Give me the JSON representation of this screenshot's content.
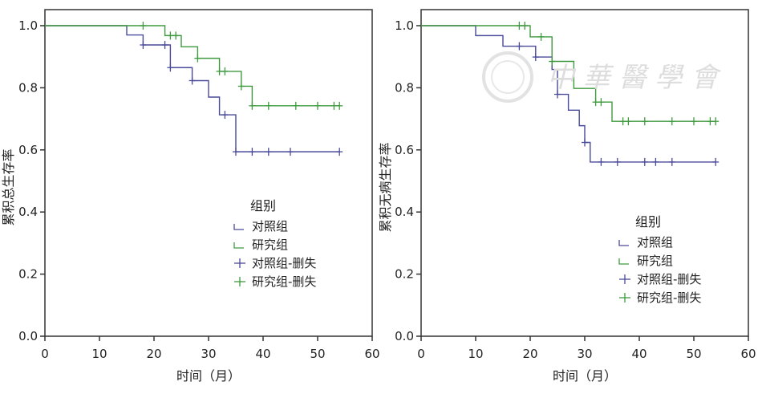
{
  "colors": {
    "control": "#4a4a9a",
    "study": "#3f9a3f",
    "axis": "#333333"
  },
  "watermark": "中华医学会",
  "chart_data": [
    {
      "type": "line",
      "subtype": "kaplan-meier",
      "title": "",
      "xlabel": "时间（月）",
      "ylabel": "累积总生存率",
      "xlim": [
        0,
        60
      ],
      "ylim": [
        0,
        1.0
      ],
      "xticks": [
        "0",
        "10",
        "20",
        "30",
        "40",
        "50",
        "60"
      ],
      "yticks": [
        "0.0",
        "0.2",
        "0.4",
        "0.6",
        "0.8",
        "1.0"
      ],
      "legend": {
        "title": "组别",
        "placement": "bottom-right",
        "entries": [
          "对照组",
          "研究组",
          "对照组-删失",
          "研究组-删失"
        ]
      },
      "series": [
        {
          "name": "对照组",
          "color_key": "control",
          "end": 54,
          "steps": [
            [
              0,
              1.0
            ],
            [
              15,
              0.97
            ],
            [
              18,
              0.938
            ],
            [
              23,
              0.865
            ],
            [
              27,
              0.823
            ],
            [
              30,
              0.77
            ],
            [
              32,
              0.713
            ],
            [
              35,
              0.594
            ]
          ],
          "censored": [
            18,
            22,
            23,
            27,
            33,
            35,
            38,
            41,
            45,
            54
          ]
        },
        {
          "name": "研究组",
          "color_key": "study",
          "end": 54,
          "steps": [
            [
              0,
              1.0
            ],
            [
              22,
              0.968
            ],
            [
              25,
              0.932
            ],
            [
              28,
              0.895
            ],
            [
              32,
              0.853
            ],
            [
              36,
              0.805
            ],
            [
              38,
              0.742
            ]
          ],
          "censored": [
            18,
            23,
            24,
            28,
            32,
            33,
            36,
            38,
            41,
            46,
            50,
            53,
            54
          ]
        }
      ]
    },
    {
      "type": "line",
      "subtype": "kaplan-meier",
      "title": "",
      "xlabel": "时间（月）",
      "ylabel": "累积无病生存率",
      "xlim": [
        0,
        60
      ],
      "ylim": [
        0,
        1.0
      ],
      "xticks": [
        "0",
        "10",
        "20",
        "30",
        "40",
        "50",
        "60"
      ],
      "yticks": [
        "0.0",
        "0.2",
        "0.4",
        "0.6",
        "0.8",
        "1.0"
      ],
      "legend": {
        "title": "组别",
        "placement": "bottom-right",
        "entries": [
          "对照组",
          "研究组",
          "对照组-删失",
          "研究组-删失"
        ]
      },
      "series": [
        {
          "name": "对照组",
          "color_key": "control",
          "end": 54,
          "steps": [
            [
              0,
              1.0
            ],
            [
              10,
              0.968
            ],
            [
              15,
              0.934
            ],
            [
              21,
              0.899
            ],
            [
              24,
              0.859
            ],
            [
              25,
              0.779
            ],
            [
              27,
              0.728
            ],
            [
              29,
              0.678
            ],
            [
              30,
              0.624
            ],
            [
              31,
              0.561
            ]
          ],
          "censored": [
            18,
            21,
            25,
            30,
            33,
            36,
            41,
            43,
            46,
            54
          ]
        },
        {
          "name": "研究组",
          "color_key": "study",
          "end": 54,
          "steps": [
            [
              0,
              1.0
            ],
            [
              20,
              0.964
            ],
            [
              24,
              0.885
            ],
            [
              28,
              0.798
            ],
            [
              32,
              0.754
            ],
            [
              35,
              0.692
            ]
          ],
          "censored": [
            18,
            19,
            22,
            24,
            32,
            33,
            37,
            38,
            41,
            46,
            50,
            53,
            54
          ]
        }
      ]
    }
  ]
}
